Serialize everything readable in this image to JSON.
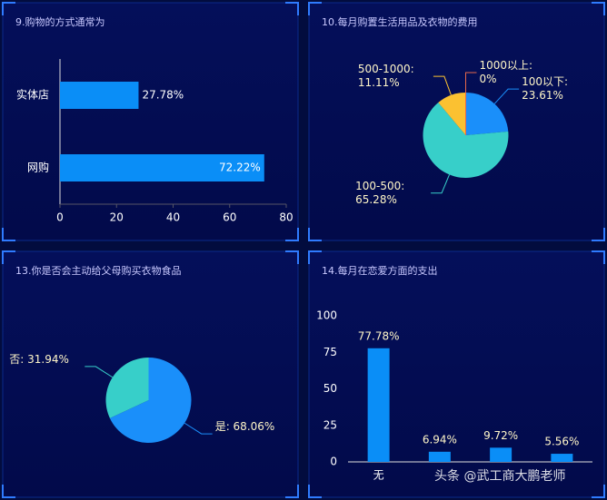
{
  "chart_data": [
    {
      "type": "hbar",
      "title": "9.购物的方式通常为",
      "categories": [
        "实体店",
        "网购"
      ],
      "values": [
        27.78,
        72.22
      ],
      "value_labels": [
        "27.78%",
        "72.22%"
      ],
      "color": "#0a8ef7",
      "xlim": [
        0,
        80
      ],
      "xticks": [
        0,
        20,
        40,
        60,
        80
      ]
    },
    {
      "type": "pie",
      "title": "10.每月购置生活用品及衣物的费用",
      "values": [
        23.61,
        65.28,
        11.11,
        0
      ],
      "value_labels": [
        "100以下: 23.61%",
        "100-500: 65.28%",
        "500-1000: 11.11%",
        "1000以上: 0%"
      ],
      "colors": [
        "#1a8ffa",
        "#37cfc9",
        "#fbc131",
        "#e8684a"
      ]
    },
    {
      "type": "pie",
      "title": "13.你是否会主动给父母购买衣物食品",
      "values": [
        68.06,
        31.94
      ],
      "value_labels": [
        "是: 68.06%",
        "否: 31.94%"
      ],
      "colors": [
        "#1a8ffa",
        "#37cfc9"
      ]
    },
    {
      "type": "bar",
      "title": "14.每月在恋爱方面的支出",
      "categories": [
        "无",
        null,
        null,
        null
      ],
      "values": [
        77.78,
        6.94,
        9.72,
        5.56
      ],
      "value_labels": [
        "77.78%",
        "6.94%",
        "9.72%",
        "5.56%"
      ],
      "color": "#0a8ef7",
      "ylim": [
        0,
        100
      ],
      "yticks": [
        0,
        25,
        50,
        75,
        100
      ]
    }
  ],
  "watermark": "头条 @武工商大鹏老师"
}
